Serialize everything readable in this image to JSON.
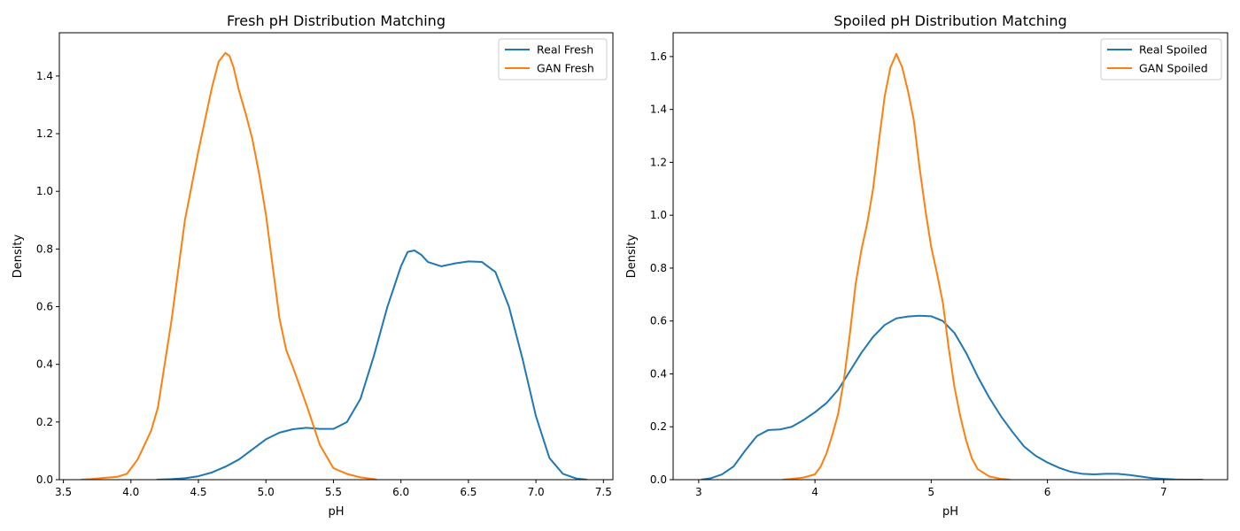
{
  "chart_data": [
    {
      "type": "line",
      "title": "Fresh pH Distribution Matching",
      "xlabel": "pH",
      "ylabel": "Density",
      "xlim": [
        3.47,
        7.57
      ],
      "ylim": [
        0,
        1.55
      ],
      "xticks": [
        3.5,
        4.0,
        4.5,
        5.0,
        5.5,
        6.0,
        6.5,
        7.0,
        7.5
      ],
      "xtick_labels": [
        "3.5",
        "4.0",
        "4.5",
        "5.0",
        "5.5",
        "6.0",
        "6.5",
        "7.0",
        "7.5"
      ],
      "yticks": [
        0.0,
        0.2,
        0.4,
        0.6,
        0.8,
        1.0,
        1.2,
        1.4
      ],
      "ytick_labels": [
        "0.0",
        "0.2",
        "0.4",
        "0.6",
        "0.8",
        "1.0",
        "1.2",
        "1.4"
      ],
      "grid": false,
      "legend_position": "top-right",
      "series": [
        {
          "name": "Real Fresh",
          "color": "#1f77b4",
          "x": [
            4.19,
            4.3,
            4.4,
            4.5,
            4.6,
            4.7,
            4.8,
            4.9,
            5.0,
            5.1,
            5.2,
            5.3,
            5.4,
            5.5,
            5.6,
            5.7,
            5.8,
            5.9,
            6.0,
            6.05,
            6.1,
            6.15,
            6.2,
            6.3,
            6.4,
            6.5,
            6.6,
            6.7,
            6.8,
            6.9,
            7.0,
            7.1,
            7.2,
            7.3,
            7.38
          ],
          "y": [
            0.0,
            0.002,
            0.005,
            0.012,
            0.025,
            0.045,
            0.07,
            0.105,
            0.14,
            0.163,
            0.175,
            0.18,
            0.176,
            0.176,
            0.2,
            0.28,
            0.43,
            0.6,
            0.74,
            0.79,
            0.795,
            0.78,
            0.755,
            0.74,
            0.75,
            0.757,
            0.755,
            0.72,
            0.6,
            0.42,
            0.22,
            0.075,
            0.02,
            0.004,
            0.0
          ]
        },
        {
          "name": "GAN Fresh",
          "color": "#ff7f0e",
          "x": [
            3.63,
            3.7,
            3.8,
            3.9,
            3.97,
            4.05,
            4.1,
            4.15,
            4.2,
            4.3,
            4.4,
            4.5,
            4.6,
            4.65,
            4.7,
            4.73,
            4.76,
            4.8,
            4.85,
            4.9,
            4.95,
            5.0,
            5.05,
            5.1,
            5.15,
            5.2,
            5.3,
            5.4,
            5.5,
            5.6,
            5.7,
            5.8,
            5.82
          ],
          "y": [
            0.0,
            0.002,
            0.006,
            0.01,
            0.02,
            0.07,
            0.12,
            0.17,
            0.25,
            0.55,
            0.9,
            1.14,
            1.36,
            1.45,
            1.48,
            1.47,
            1.43,
            1.35,
            1.27,
            1.18,
            1.06,
            0.92,
            0.74,
            0.56,
            0.45,
            0.39,
            0.26,
            0.12,
            0.04,
            0.02,
            0.008,
            0.002,
            0.0
          ]
        }
      ]
    },
    {
      "type": "line",
      "title": "Spoiled pH Distribution Matching",
      "xlabel": "pH",
      "ylabel": "Density",
      "xlim": [
        2.78,
        7.55
      ],
      "ylim": [
        0,
        1.69
      ],
      "xticks": [
        3,
        4,
        5,
        6,
        7
      ],
      "xtick_labels": [
        "3",
        "4",
        "5",
        "6",
        "7"
      ],
      "yticks": [
        0.0,
        0.2,
        0.4,
        0.6,
        0.8,
        1.0,
        1.2,
        1.4,
        1.6
      ],
      "ytick_labels": [
        "0.0",
        "0.2",
        "0.4",
        "0.6",
        "0.8",
        "1.0",
        "1.2",
        "1.4",
        "1.6"
      ],
      "grid": false,
      "legend_position": "top-right",
      "series": [
        {
          "name": "Real Spoiled",
          "color": "#1f77b4",
          "x": [
            3.02,
            3.1,
            3.2,
            3.3,
            3.4,
            3.5,
            3.6,
            3.7,
            3.8,
            3.9,
            4.0,
            4.1,
            4.2,
            4.3,
            4.4,
            4.5,
            4.6,
            4.7,
            4.8,
            4.9,
            5.0,
            5.1,
            5.2,
            5.3,
            5.4,
            5.5,
            5.6,
            5.7,
            5.8,
            5.9,
            6.0,
            6.1,
            6.2,
            6.3,
            6.4,
            6.5,
            6.6,
            6.7,
            6.8,
            6.9,
            7.0,
            7.1,
            7.2,
            7.34
          ],
          "y": [
            0.0,
            0.005,
            0.02,
            0.05,
            0.11,
            0.165,
            0.188,
            0.19,
            0.2,
            0.225,
            0.255,
            0.29,
            0.34,
            0.41,
            0.48,
            0.54,
            0.585,
            0.61,
            0.617,
            0.62,
            0.618,
            0.6,
            0.555,
            0.48,
            0.39,
            0.31,
            0.24,
            0.18,
            0.125,
            0.09,
            0.065,
            0.045,
            0.03,
            0.022,
            0.02,
            0.022,
            0.022,
            0.018,
            0.012,
            0.006,
            0.003,
            0.001,
            0.0,
            0.0
          ]
        },
        {
          "name": "GAN Spoiled",
          "color": "#ff7f0e",
          "x": [
            3.72,
            3.8,
            3.9,
            4.0,
            4.05,
            4.1,
            4.15,
            4.2,
            4.25,
            4.3,
            4.35,
            4.4,
            4.45,
            4.5,
            4.55,
            4.6,
            4.65,
            4.7,
            4.75,
            4.8,
            4.85,
            4.9,
            4.95,
            5.0,
            5.05,
            5.1,
            5.15,
            5.2,
            5.25,
            5.3,
            5.35,
            5.4,
            5.5,
            5.6,
            5.68
          ],
          "y": [
            0.0,
            0.003,
            0.008,
            0.02,
            0.05,
            0.1,
            0.17,
            0.25,
            0.38,
            0.55,
            0.74,
            0.87,
            0.97,
            1.1,
            1.28,
            1.45,
            1.56,
            1.61,
            1.56,
            1.47,
            1.36,
            1.18,
            1.02,
            0.88,
            0.78,
            0.67,
            0.5,
            0.35,
            0.24,
            0.15,
            0.08,
            0.04,
            0.012,
            0.003,
            0.0
          ]
        }
      ]
    }
  ]
}
